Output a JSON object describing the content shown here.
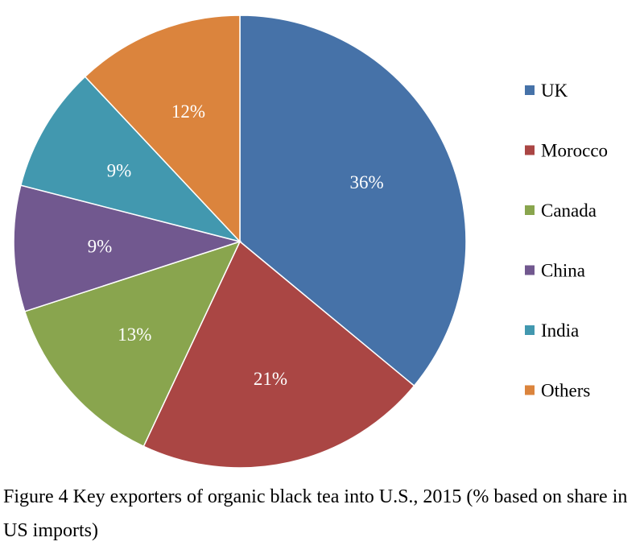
{
  "chart_data": {
    "type": "pie",
    "categories": [
      "UK",
      "Morocco",
      "Canada",
      "China",
      "India",
      "Others"
    ],
    "values": [
      36,
      21,
      13,
      9,
      9,
      12
    ],
    "data_labels": [
      "36%",
      "21%",
      "13%",
      "9%",
      "9%",
      "12%"
    ],
    "colors": [
      "#4672A8",
      "#AA4644",
      "#89A54E",
      "#71588F",
      "#4298AF",
      "#DB843D"
    ],
    "start_angle_deg": 0,
    "direction": "clockwise",
    "legend": {
      "position": "right",
      "items": [
        "UK",
        "Morocco",
        "Canada",
        "China",
        "India",
        "Others"
      ]
    }
  },
  "caption": "Figure 4 Key exporters of organic black tea into U.S., 2015 (% based on share in US imports)"
}
